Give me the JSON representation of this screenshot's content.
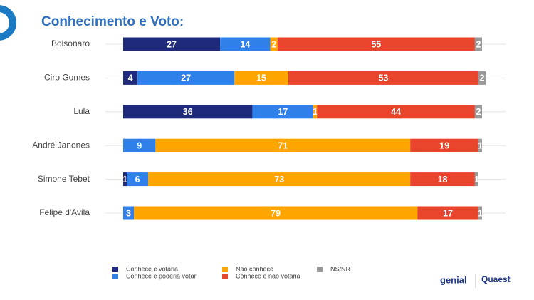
{
  "chart_data": {
    "type": "bar",
    "orientation": "horizontal",
    "stacked": true,
    "title": "Conhecimento e Voto:",
    "categories": [
      "Bolsonaro",
      "Ciro Gomes",
      "Lula",
      "André Janones",
      "Simone Tebet",
      "Felipe d'Avila"
    ],
    "series": [
      {
        "name": "Conhece e votaria",
        "color": "#1f2a7a",
        "values": [
          27,
          4,
          36,
          0,
          1,
          0
        ]
      },
      {
        "name": "Conhece e poderia votar",
        "color": "#2f80e8",
        "values": [
          14,
          27,
          17,
          9,
          6,
          3
        ]
      },
      {
        "name": "Não conhece",
        "color": "#ffa500",
        "values": [
          2,
          15,
          1,
          71,
          73,
          79
        ]
      },
      {
        "name": "Conhece e não votaria",
        "color": "#e8452c",
        "values": [
          55,
          53,
          44,
          19,
          18,
          17
        ]
      },
      {
        "name": "NS/NR",
        "color": "#9a9a9a",
        "values": [
          2,
          2,
          2,
          1,
          1,
          1
        ]
      }
    ],
    "xlim": [
      0,
      100
    ],
    "grid": true
  },
  "logos": [
    "genial",
    "Quaest"
  ]
}
